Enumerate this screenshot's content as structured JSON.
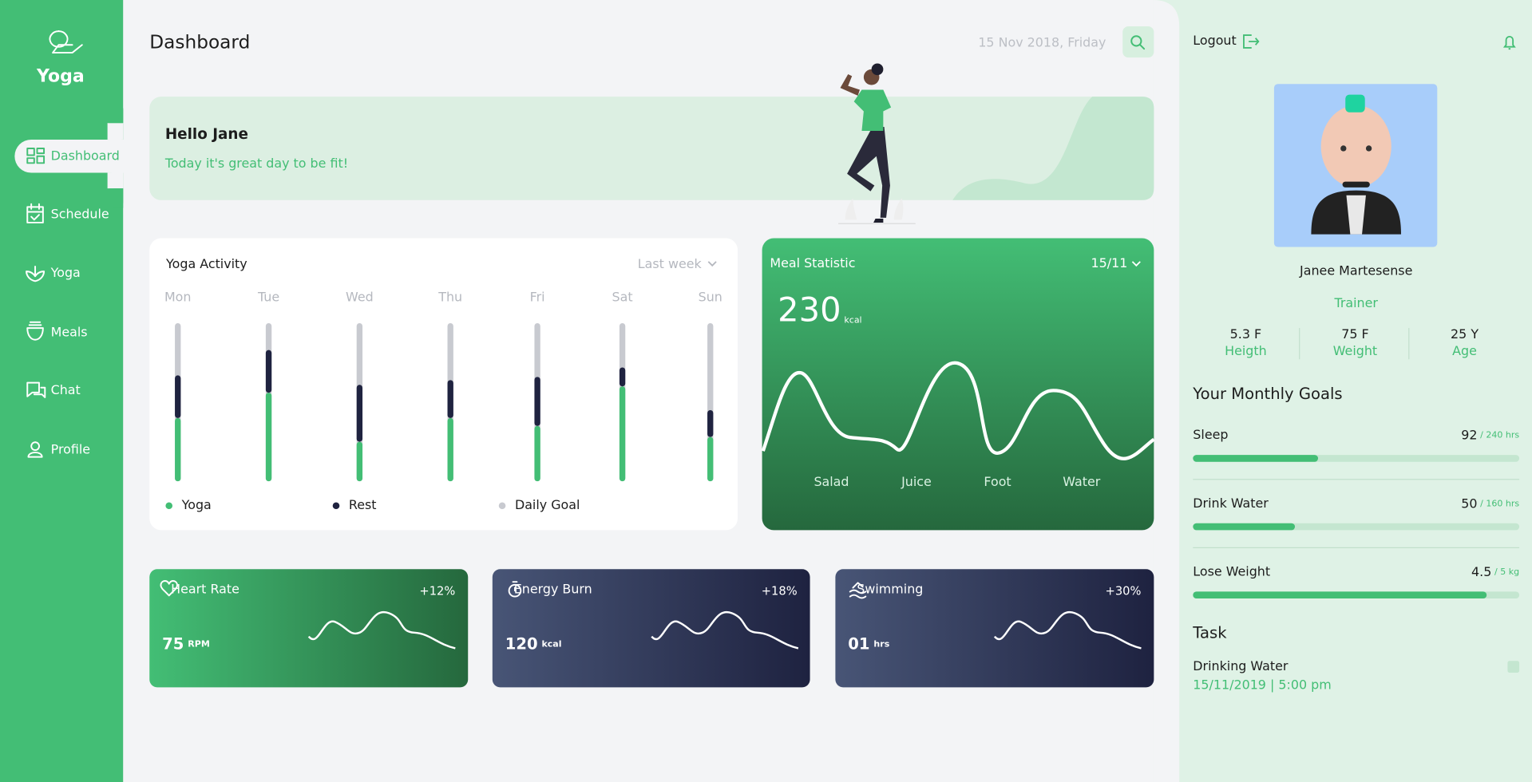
{
  "sidebar": {
    "brand": "Yoga",
    "nav": [
      "Dashboard",
      "Schedule",
      "Yoga",
      "Meals",
      "Chat",
      "Profile"
    ]
  },
  "header": {
    "title": "Dashboard",
    "date": "15 Nov 2018, Friday"
  },
  "banner": {
    "greeting": "Hello Jane",
    "message": "Today it's great day to be fit!"
  },
  "yoga_activity": {
    "title": "Yoga Activity",
    "period": "Last week",
    "categories": [
      "Mon",
      "Tue",
      "Wed",
      "Thu",
      "Fri",
      "Sat",
      "Sun"
    ],
    "ylim": [
      0,
      100
    ],
    "series": [
      {
        "name": "Yoga",
        "color": "#43be75",
        "values": [
          40,
          56,
          25,
          40,
          35,
          60,
          28
        ]
      },
      {
        "name": "Rest",
        "color": "#1f2340",
        "values": [
          27,
          27,
          36,
          24,
          31,
          12,
          17
        ]
      }
    ],
    "goal_label": "Daily Goal",
    "goal_color": "#c8cad0"
  },
  "meal_statistic": {
    "title": "Meal Statistic",
    "date": "15/11",
    "value": "230",
    "unit": "kcal",
    "categories": [
      "Salad",
      "Juice",
      "Foot",
      "Water"
    ]
  },
  "cards": [
    {
      "title": "Heart Rate",
      "change": "+12%",
      "value": "75",
      "unit": "RPM"
    },
    {
      "title": "Energy Burn",
      "change": "+18%",
      "value": "120",
      "unit": "kcal"
    },
    {
      "title": "Swimming",
      "change": "+30%",
      "value": "01",
      "unit": "hrs"
    }
  ],
  "profile": {
    "logout": "Logout",
    "name": "Janee Martesense",
    "role": "Trainer",
    "stats": [
      {
        "value": "5.3 F",
        "label": "Heigth"
      },
      {
        "value": "75 F",
        "label": "Weight"
      },
      {
        "value": "25 Y",
        "label": "Age"
      }
    ]
  },
  "goals": {
    "title": "Your Monthly Goals",
    "items": [
      {
        "name": "Sleep",
        "value": 92,
        "max": 240,
        "max_label": "/ 240 hrs"
      },
      {
        "name": "Drink Water",
        "value": 50,
        "max": 160,
        "max_label": "/ 160 hrs"
      },
      {
        "name": "Lose Weight",
        "value": 4.5,
        "max": 5,
        "max_label": "/ 5 kg"
      }
    ]
  },
  "task": {
    "title": "Task",
    "items": [
      {
        "name": "Drinking Water",
        "time": "15/11/2019 | 5:00 pm"
      }
    ]
  }
}
